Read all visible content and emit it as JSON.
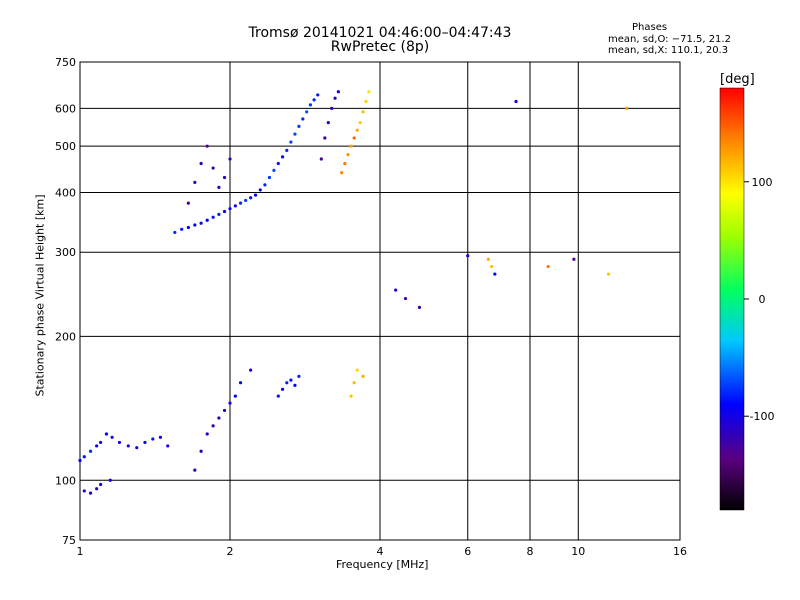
{
  "chart_data": {
    "type": "scatter",
    "title": "Tromsø 20141021 04:46:00–04:47:43",
    "subtitle": "RwPretec (8p)",
    "xlabel": "Frequency [MHz]",
    "ylabel": "Stationary phase Virtual Height [km]",
    "x_scale": "log",
    "y_scale": "log",
    "xlim": [
      1,
      16
    ],
    "ylim": [
      75,
      750
    ],
    "x_ticks": [
      1,
      2,
      4,
      6,
      8,
      10,
      16
    ],
    "y_ticks": [
      75,
      100,
      200,
      300,
      400,
      500,
      600,
      750
    ],
    "grid": true,
    "phase_stats": {
      "heading": "Phases",
      "o_line": "mean, sd,O: −71.5, 21.2",
      "x_line": "mean, sd,X: 110.1, 20.3"
    },
    "colorbar": {
      "label": "[deg]",
      "range": [
        -180,
        180
      ],
      "ticks": [
        100,
        0,
        -100
      ]
    },
    "series": [
      {
        "x": [
          1.0,
          1.02,
          1.05,
          1.08,
          1.1,
          1.13,
          1.16,
          1.2,
          1.25,
          1.3,
          1.35,
          1.4,
          1.45,
          1.5,
          1.55,
          1.6,
          1.65,
          1.7,
          1.75,
          1.8,
          1.85,
          1.9,
          1.95,
          2.0,
          2.05,
          2.1,
          2.15,
          2.2,
          2.25,
          2.3,
          2.35,
          2.4,
          2.45,
          2.5,
          2.55,
          2.6,
          2.65,
          2.7,
          2.75,
          2.8,
          2.85,
          2.9,
          2.95,
          3.0
        ],
        "y": [
          110,
          112,
          115,
          118,
          120,
          125,
          123,
          120,
          118,
          117,
          120,
          122,
          123,
          118,
          330,
          335,
          338,
          342,
          345,
          350,
          355,
          360,
          365,
          370,
          375,
          380,
          385,
          390,
          395,
          405,
          415,
          430,
          445,
          460,
          475,
          490,
          510,
          530,
          550,
          570,
          590,
          610,
          625,
          640
        ],
        "phase": [
          -90,
          -85,
          -80,
          -95,
          -100,
          -90,
          -95,
          -100,
          -105,
          -95,
          -90,
          -85,
          -95,
          -100,
          -80,
          -85,
          -90,
          -95,
          -100,
          -90,
          -85,
          -80,
          -90,
          -95,
          -100,
          -80,
          -75,
          -85,
          -90,
          -95,
          -80,
          -75,
          -70,
          -85,
          -90,
          -80,
          -75,
          -70,
          -75,
          -80,
          -70,
          -75,
          -80,
          -85
        ]
      },
      {
        "x": [
          1.65,
          1.7,
          1.75,
          1.8,
          1.85,
          1.9,
          1.95,
          2.0
        ],
        "y": [
          380,
          420,
          460,
          500,
          450,
          410,
          430,
          470
        ],
        "phase": [
          -120,
          -115,
          -110,
          -125,
          -118,
          -112,
          -108,
          -115
        ]
      },
      {
        "x": [
          1.02,
          1.05,
          1.08,
          1.1,
          1.15,
          1.7,
          1.75,
          1.8,
          1.85,
          1.9,
          1.95,
          2.0,
          2.05,
          2.1,
          2.2
        ],
        "y": [
          95,
          94,
          96,
          98,
          100,
          105,
          115,
          125,
          130,
          135,
          140,
          145,
          150,
          160,
          170
        ],
        "phase": [
          -100,
          -105,
          -110,
          -95,
          -100,
          -115,
          -110,
          -105,
          -120,
          -115,
          -110,
          -105,
          -95,
          -90,
          -100
        ]
      },
      {
        "x": [
          2.5,
          2.55,
          2.6,
          2.65,
          2.7,
          2.75
        ],
        "y": [
          150,
          155,
          160,
          162,
          158,
          165
        ],
        "phase": [
          -85,
          -90,
          -80,
          -85,
          -90,
          -80
        ]
      },
      {
        "x": [
          3.05,
          3.1,
          3.15,
          3.2,
          3.25,
          3.3
        ],
        "y": [
          470,
          520,
          560,
          600,
          630,
          650
        ],
        "phase": [
          -125,
          -120,
          -115,
          -110,
          -105,
          -100
        ]
      },
      {
        "x": [
          3.35,
          3.4,
          3.45,
          3.5,
          3.55,
          3.6,
          3.65,
          3.7,
          3.75,
          3.8
        ],
        "y": [
          440,
          460,
          480,
          500,
          520,
          540,
          560,
          590,
          620,
          650
        ],
        "phase": [
          135,
          140,
          130,
          125,
          145,
          120,
          110,
          115,
          105,
          100
        ]
      },
      {
        "x": [
          3.5,
          3.55,
          3.6,
          3.7
        ],
        "y": [
          150,
          160,
          170,
          165
        ],
        "phase": [
          110,
          115,
          105,
          120
        ]
      },
      {
        "x": [
          4.3,
          4.5,
          4.8,
          6.0,
          6.6,
          6.7,
          6.8,
          7.5,
          8.7,
          9.8,
          11.5,
          12.5
        ],
        "y": [
          250,
          240,
          230,
          295,
          290,
          280,
          270,
          620,
          280,
          290,
          270,
          600
        ],
        "phase": [
          -110,
          -120,
          -115,
          -100,
          120,
          115,
          -90,
          -100,
          140,
          -130,
          110,
          130
        ]
      }
    ]
  }
}
